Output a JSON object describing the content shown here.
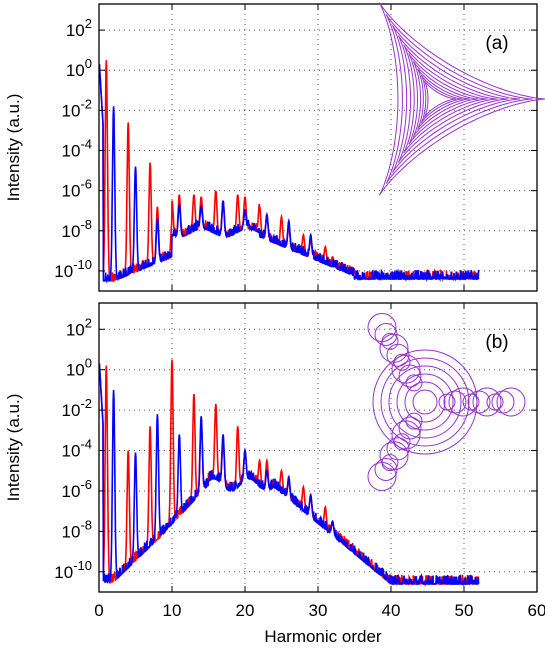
{
  "chart_data": [
    {
      "type": "line",
      "panel_label": "(a)",
      "xlabel": "",
      "ylabel": "Intensity (a.u.)",
      "yscale": "log",
      "xlim": [
        0,
        60
      ],
      "ylim_exponent": [
        -11,
        3.3
      ],
      "x_ticks": [
        0,
        10,
        20,
        30,
        40,
        50,
        60
      ],
      "y_ticks": [
        {
          "base": "10",
          "exp": "2",
          "value": 2
        },
        {
          "base": "10",
          "exp": "0",
          "value": 0
        },
        {
          "base": "10",
          "exp": "-2",
          "value": -2
        },
        {
          "base": "10",
          "exp": "-4",
          "value": -4
        },
        {
          "base": "10",
          "exp": "-6",
          "value": -6
        },
        {
          "base": "10",
          "exp": "-8",
          "value": -8
        },
        {
          "base": "10",
          "exp": "-10",
          "value": -10
        }
      ],
      "grid": true,
      "grid_style": "dotted",
      "series": [
        {
          "color": "#ff0000",
          "x_max": 52,
          "peaks": [
            [
              1,
              0.5
            ],
            [
              4,
              -2.6
            ],
            [
              7,
              -4.6
            ],
            [
              8,
              -6.8
            ],
            [
              10,
              -6.5
            ],
            [
              11,
              -6.2
            ],
            [
              13,
              -6.2
            ],
            [
              14,
              -6.3
            ],
            [
              16,
              -6.0
            ],
            [
              17,
              -6.5
            ],
            [
              19,
              -6.2
            ],
            [
              20,
              -6.3
            ],
            [
              22,
              -6.8
            ],
            [
              23,
              -7.2
            ],
            [
              25,
              -7.3
            ],
            [
              26,
              -7.8
            ],
            [
              28,
              -8.2
            ],
            [
              29,
              -8.4
            ],
            [
              31,
              -8.8
            ],
            [
              32,
              -9.3
            ],
            [
              34,
              -9.8
            ],
            [
              35,
              -10.0
            ]
          ]
        },
        {
          "color": "#0000ff",
          "x_max": 52,
          "peaks": [
            [
              2,
              -1.8
            ],
            [
              5,
              -4.8
            ],
            [
              8,
              -7.4
            ],
            [
              11,
              -6.7
            ],
            [
              14,
              -6.8
            ],
            [
              17,
              -6.5
            ],
            [
              20,
              -7.0
            ],
            [
              23,
              -7.2
            ],
            [
              26,
              -7.5
            ],
            [
              29,
              -8.2
            ]
          ]
        }
      ],
      "inset": {
        "shape": "deltoid",
        "color": "#9933cc"
      }
    },
    {
      "type": "line",
      "panel_label": "(b)",
      "xlabel": "Harmonic order",
      "ylabel": "Intensity (a.u.)",
      "yscale": "log",
      "xlim": [
        0,
        60
      ],
      "ylim_exponent": [
        -11,
        3.3
      ],
      "x_ticks": [
        0,
        10,
        20,
        30,
        40,
        50,
        60
      ],
      "y_ticks": [
        {
          "base": "10",
          "exp": "2",
          "value": 2
        },
        {
          "base": "10",
          "exp": "0",
          "value": 0
        },
        {
          "base": "10",
          "exp": "-2",
          "value": -2
        },
        {
          "base": "10",
          "exp": "-4",
          "value": -4
        },
        {
          "base": "10",
          "exp": "-6",
          "value": -6
        },
        {
          "base": "10",
          "exp": "-8",
          "value": -8
        },
        {
          "base": "10",
          "exp": "-10",
          "value": -10
        }
      ],
      "grid": true,
      "grid_style": "dotted",
      "series": [
        {
          "color": "#ff0000",
          "x_max": 52,
          "peaks": [
            [
              1,
              0.2
            ],
            [
              4,
              -4.0
            ],
            [
              7,
              -2.8
            ],
            [
              10,
              0.5
            ],
            [
              13,
              -1.2
            ],
            [
              14,
              -2.5
            ],
            [
              16,
              -1.7
            ],
            [
              17,
              -3.5
            ],
            [
              19,
              -2.8
            ],
            [
              20,
              -4.0
            ],
            [
              22,
              -4.5
            ],
            [
              23,
              -4.5
            ],
            [
              25,
              -5.0
            ],
            [
              26,
              -5.5
            ],
            [
              28,
              -5.8
            ],
            [
              29,
              -6.2
            ],
            [
              31,
              -6.8
            ],
            [
              32,
              -7.5
            ],
            [
              34,
              -8.5
            ],
            [
              35,
              -9.0
            ],
            [
              37,
              -9.8
            ],
            [
              38,
              -10.3
            ]
          ]
        },
        {
          "color": "#0000ff",
          "x_max": 52,
          "peaks": [
            [
              2,
              -1.0
            ],
            [
              5,
              -4.1
            ],
            [
              8,
              -2.2
            ],
            [
              11,
              -3.2
            ],
            [
              14,
              -2.3
            ],
            [
              17,
              -3.2
            ],
            [
              20,
              -4.0
            ],
            [
              23,
              -5.0
            ],
            [
              26,
              -5.3
            ],
            [
              29,
              -6.2
            ],
            [
              32,
              -7.5
            ]
          ]
        }
      ],
      "inset": {
        "shape": "three-lobe-loops",
        "color": "#9933cc"
      }
    }
  ]
}
